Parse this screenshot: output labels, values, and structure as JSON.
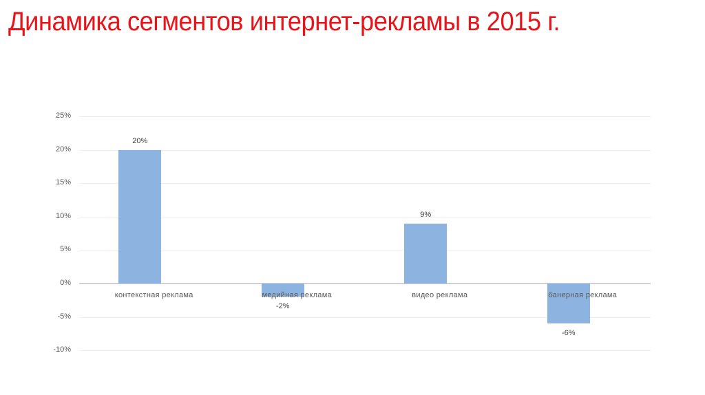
{
  "slide": {
    "title": "Динамика сегментов интернет-рекламы в 2015 г.",
    "title_color": "#e8141a"
  },
  "chart_data": {
    "type": "bar",
    "title": "Динамика сегментов интернет-рекламы в 2015 г.",
    "xlabel": "",
    "ylabel": "",
    "categories": [
      "контекстная реклама",
      "медийная реклама",
      "видео реклама",
      "банерная реклама"
    ],
    "values": [
      20,
      -2,
      9,
      -6
    ],
    "value_labels": [
      "20%",
      "-2%",
      "9%",
      "-6%"
    ],
    "unit": "%",
    "ylim": [
      -10,
      25
    ],
    "yticks": [
      25,
      20,
      15,
      10,
      5,
      0,
      -5,
      -10
    ],
    "ytick_labels": [
      "25%",
      "20%",
      "15%",
      "10%",
      "5%",
      "0%",
      "-5%",
      "-10%"
    ],
    "grid": true,
    "legend": "none",
    "bar_color": "#8db4e0"
  }
}
